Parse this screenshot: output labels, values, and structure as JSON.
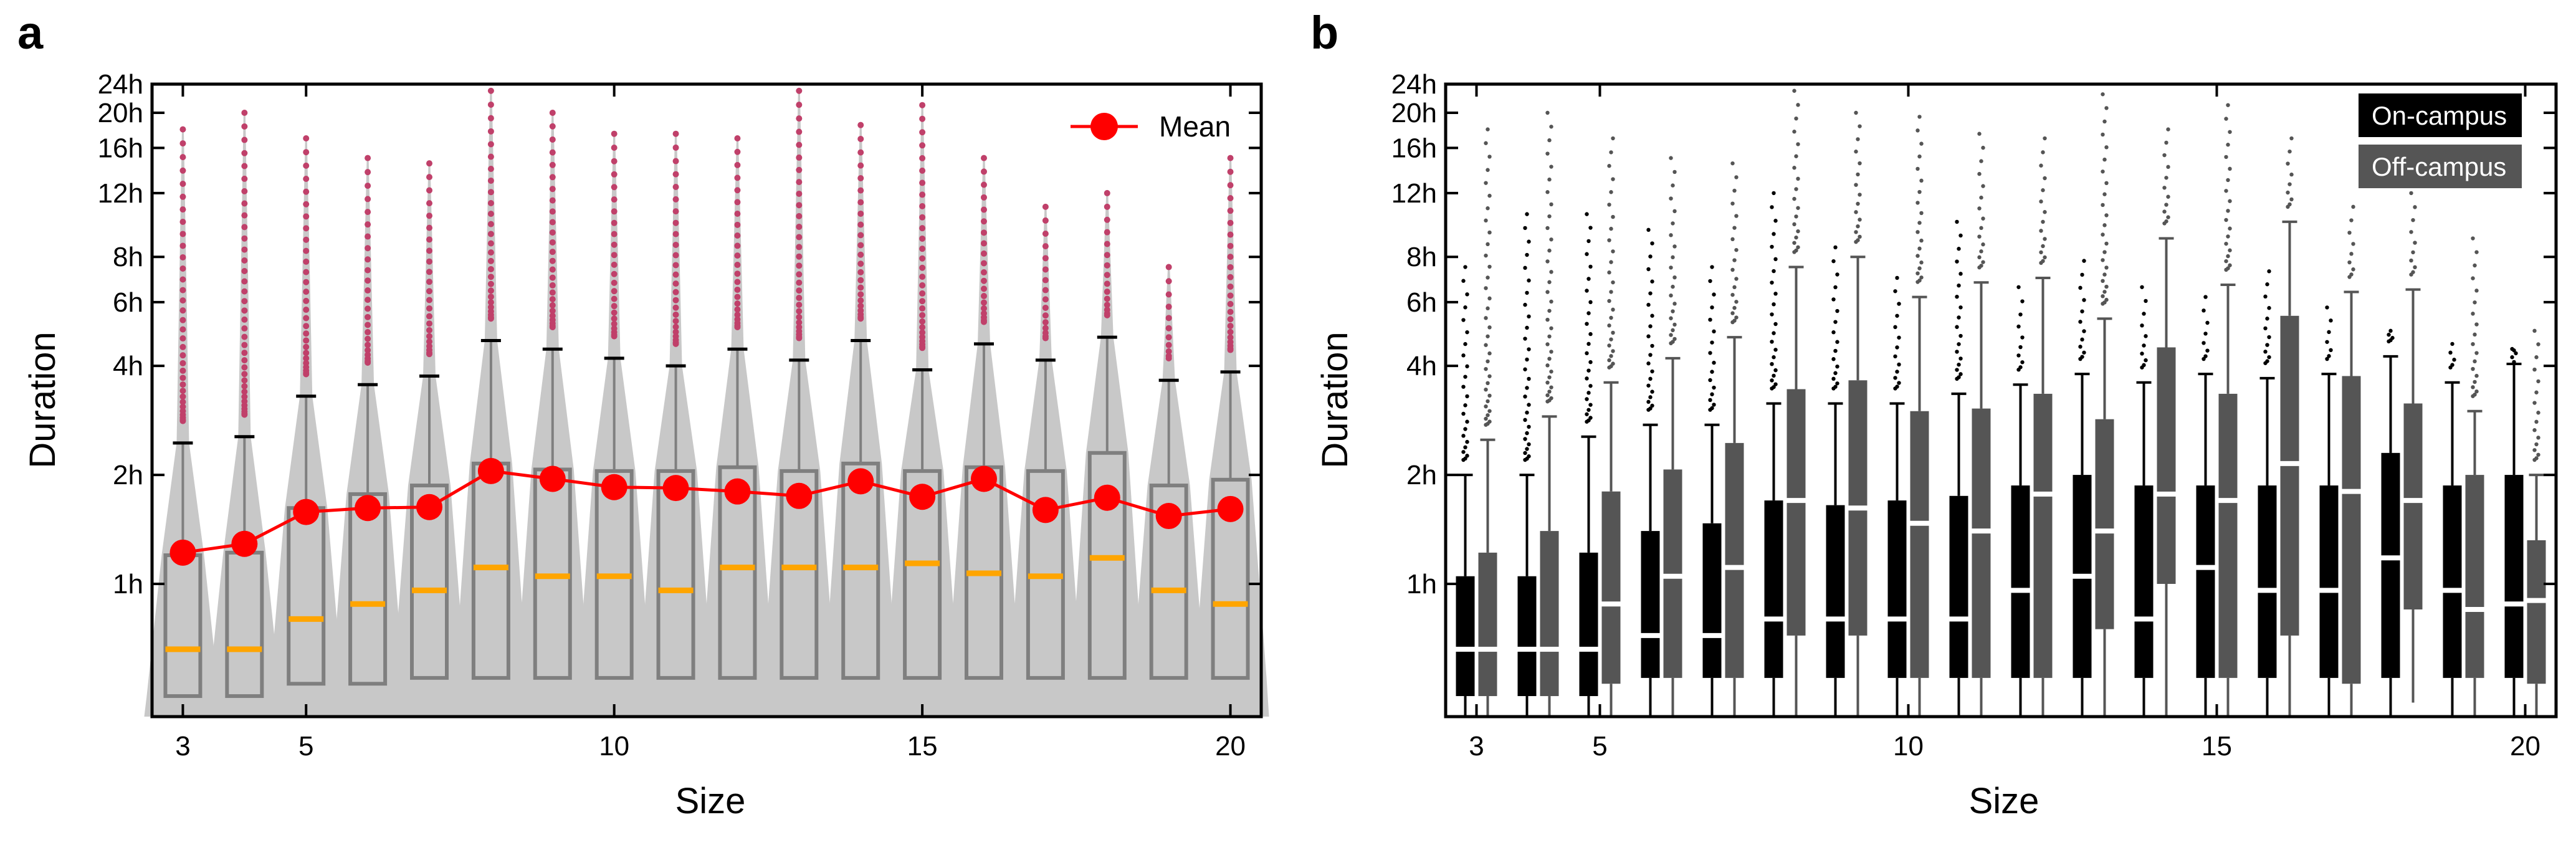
{
  "chart_data": [
    {
      "panel": "a",
      "type": "violin+box+line",
      "xlabel": "Size",
      "ylabel": "Duration",
      "yscale": "log",
      "ylim_hours": [
        0.43,
        24
      ],
      "xlim": [
        2.5,
        20.5
      ],
      "yticks": [
        {
          "hours": 24,
          "label": "24h"
        },
        {
          "hours": 20,
          "label": "20h"
        },
        {
          "hours": 16,
          "label": "16h"
        },
        {
          "hours": 12,
          "label": "12h"
        },
        {
          "hours": 8,
          "label": "8h"
        },
        {
          "hours": 6,
          "label": "6h"
        },
        {
          "hours": 4,
          "label": "4h"
        },
        {
          "hours": 2,
          "label": "2h"
        },
        {
          "hours": 1,
          "label": "1h"
        }
      ],
      "xticks": [
        {
          "value": 3,
          "label": "3"
        },
        {
          "value": 5,
          "label": "5"
        },
        {
          "value": 10,
          "label": "10"
        },
        {
          "value": 15,
          "label": "15"
        },
        {
          "value": 20,
          "label": "20"
        }
      ],
      "legend": [
        {
          "label": "Mean",
          "color": "#ff0000",
          "marker": "circle"
        }
      ],
      "sizes": [
        3,
        4,
        5,
        6,
        7,
        8,
        9,
        10,
        11,
        12,
        13,
        14,
        15,
        16,
        17,
        18,
        19,
        20
      ],
      "mean": [
        1.22,
        1.29,
        1.58,
        1.62,
        1.63,
        2.05,
        1.95,
        1.85,
        1.84,
        1.8,
        1.75,
        1.92,
        1.74,
        1.95,
        1.6,
        1.73,
        1.54,
        1.61
      ],
      "median": [
        0.66,
        0.66,
        0.8,
        0.88,
        0.96,
        1.11,
        1.05,
        1.05,
        0.96,
        1.11,
        1.11,
        1.11,
        1.14,
        1.07,
        1.05,
        1.18,
        0.96,
        0.88
      ],
      "q1": [
        0.49,
        0.49,
        0.53,
        0.53,
        0.55,
        0.55,
        0.55,
        0.55,
        0.55,
        0.55,
        0.55,
        0.55,
        0.55,
        0.55,
        0.55,
        0.55,
        0.55,
        0.55
      ],
      "q3": [
        1.2,
        1.22,
        1.62,
        1.77,
        1.87,
        2.15,
        2.07,
        2.05,
        2.05,
        2.1,
        2.05,
        2.15,
        2.05,
        2.1,
        2.05,
        2.3,
        1.87,
        1.94
      ],
      "whisker_hi": [
        2.45,
        2.55,
        3.3,
        3.55,
        3.75,
        4.7,
        4.45,
        4.2,
        4.0,
        4.45,
        4.15,
        4.7,
        3.9,
        4.6,
        4.15,
        4.8,
        3.65,
        3.85
      ],
      "outlier_max": [
        18,
        20,
        17,
        15,
        14.5,
        23,
        20,
        17.5,
        17.5,
        17,
        23,
        18.5,
        21,
        15,
        11,
        12,
        7.5,
        15
      ],
      "series_colors": {
        "mean": "#ff0000",
        "median": "#ffa500",
        "violin": "#c8c8c8",
        "box": "#7f7f7f",
        "outlier": "#c0406a"
      }
    },
    {
      "panel": "b",
      "type": "box",
      "xlabel": "Size",
      "ylabel": "Duration",
      "yscale": "log",
      "ylim_hours": [
        0.43,
        24
      ],
      "xlim": [
        2.5,
        20.5
      ],
      "yticks": [
        {
          "hours": 24,
          "label": "24h"
        },
        {
          "hours": 20,
          "label": "20h"
        },
        {
          "hours": 16,
          "label": "16h"
        },
        {
          "hours": 12,
          "label": "12h"
        },
        {
          "hours": 8,
          "label": "8h"
        },
        {
          "hours": 6,
          "label": "6h"
        },
        {
          "hours": 4,
          "label": "4h"
        },
        {
          "hours": 2,
          "label": "2h"
        },
        {
          "hours": 1,
          "label": "1h"
        }
      ],
      "xticks": [
        {
          "value": 3,
          "label": "3"
        },
        {
          "value": 5,
          "label": "5"
        },
        {
          "value": 10,
          "label": "10"
        },
        {
          "value": 15,
          "label": "15"
        },
        {
          "value": 20,
          "label": "20"
        }
      ],
      "legend": [
        {
          "label": "On-campus",
          "color": "#000000"
        },
        {
          "label": "Off-campus",
          "color": "#555555"
        }
      ],
      "sizes": [
        3,
        4,
        5,
        6,
        7,
        8,
        9,
        10,
        11,
        12,
        13,
        14,
        15,
        16,
        17,
        18,
        19,
        20
      ],
      "series": [
        {
          "name": "On-campus",
          "color": "#000000",
          "median": [
            0.66,
            0.66,
            0.66,
            0.72,
            0.72,
            0.8,
            0.8,
            0.8,
            0.8,
            0.96,
            1.05,
            0.8,
            1.11,
            0.96,
            0.96,
            1.18,
            0.96,
            0.88
          ],
          "q1": [
            0.49,
            0.49,
            0.49,
            0.55,
            0.55,
            0.55,
            0.55,
            0.55,
            0.55,
            0.55,
            0.55,
            0.55,
            0.55,
            0.55,
            0.55,
            0.55,
            0.55,
            0.55
          ],
          "q3": [
            1.05,
            1.05,
            1.22,
            1.4,
            1.47,
            1.7,
            1.65,
            1.7,
            1.75,
            1.87,
            2.0,
            1.87,
            1.87,
            1.87,
            1.87,
            2.3,
            1.87,
            2.0
          ],
          "whisker_lo": [
            0.43,
            0.43,
            0.43,
            0.43,
            0.43,
            0.43,
            0.43,
            0.43,
            0.43,
            0.43,
            0.43,
            0.43,
            0.43,
            0.43,
            0.43,
            0.43,
            0.43,
            0.43
          ],
          "whisker_hi": [
            2.0,
            2.0,
            2.55,
            2.75,
            2.75,
            3.15,
            3.15,
            3.15,
            3.35,
            3.55,
            3.8,
            3.6,
            3.8,
            3.7,
            3.8,
            4.25,
            3.6,
            4.05
          ],
          "outlier_max": [
            7.5,
            10.5,
            10.5,
            9.5,
            7.5,
            12,
            8.5,
            7,
            10,
            6.6,
            7.8,
            6.6,
            6.2,
            7.3,
            5.8,
            5,
            4.6,
            4.1
          ]
        },
        {
          "name": "Off-campus",
          "color": "#555555",
          "median": [
            0.66,
            0.66,
            0.88,
            1.05,
            1.11,
            1.7,
            1.62,
            1.47,
            1.4,
            1.77,
            1.4,
            1.77,
            1.7,
            2.15,
            1.8,
            1.7,
            0.85,
            0.9
          ],
          "q1": [
            0.49,
            0.49,
            0.53,
            0.55,
            0.55,
            0.72,
            0.72,
            0.55,
            0.55,
            0.55,
            0.75,
            1.0,
            0.55,
            0.72,
            0.53,
            0.85,
            0.55,
            0.53
          ],
          "q3": [
            1.22,
            1.4,
            1.8,
            2.07,
            2.45,
            3.45,
            3.65,
            3.0,
            3.05,
            3.35,
            2.85,
            4.5,
            3.35,
            5.5,
            3.75,
            3.15,
            2.0,
            1.32
          ],
          "whisker_lo": [
            0.43,
            0.43,
            0.43,
            0.43,
            0.43,
            0.43,
            0.43,
            0.43,
            0.43,
            0.43,
            0.43,
            0.43,
            0.43,
            0.43,
            0.43,
            0.47,
            0.43,
            0.43
          ],
          "whisker_hi": [
            2.5,
            2.9,
            3.6,
            4.2,
            4.8,
            7.5,
            8.0,
            6.2,
            6.8,
            7.0,
            5.4,
            9.0,
            6.7,
            10.0,
            6.4,
            6.5,
            3.0,
            2.0
          ],
          "outlier_max": [
            18,
            20,
            17,
            15,
            14.5,
            23,
            20,
            19.5,
            17.5,
            17,
            22.5,
            18,
            21,
            17,
            11,
            12,
            9,
            5
          ]
        }
      ]
    }
  ],
  "page": {
    "panel_a_label": "a",
    "panel_b_label": "b",
    "legend_a_mean": "Mean",
    "legend_b_on": "On-campus",
    "legend_b_off": "Off-campus"
  }
}
